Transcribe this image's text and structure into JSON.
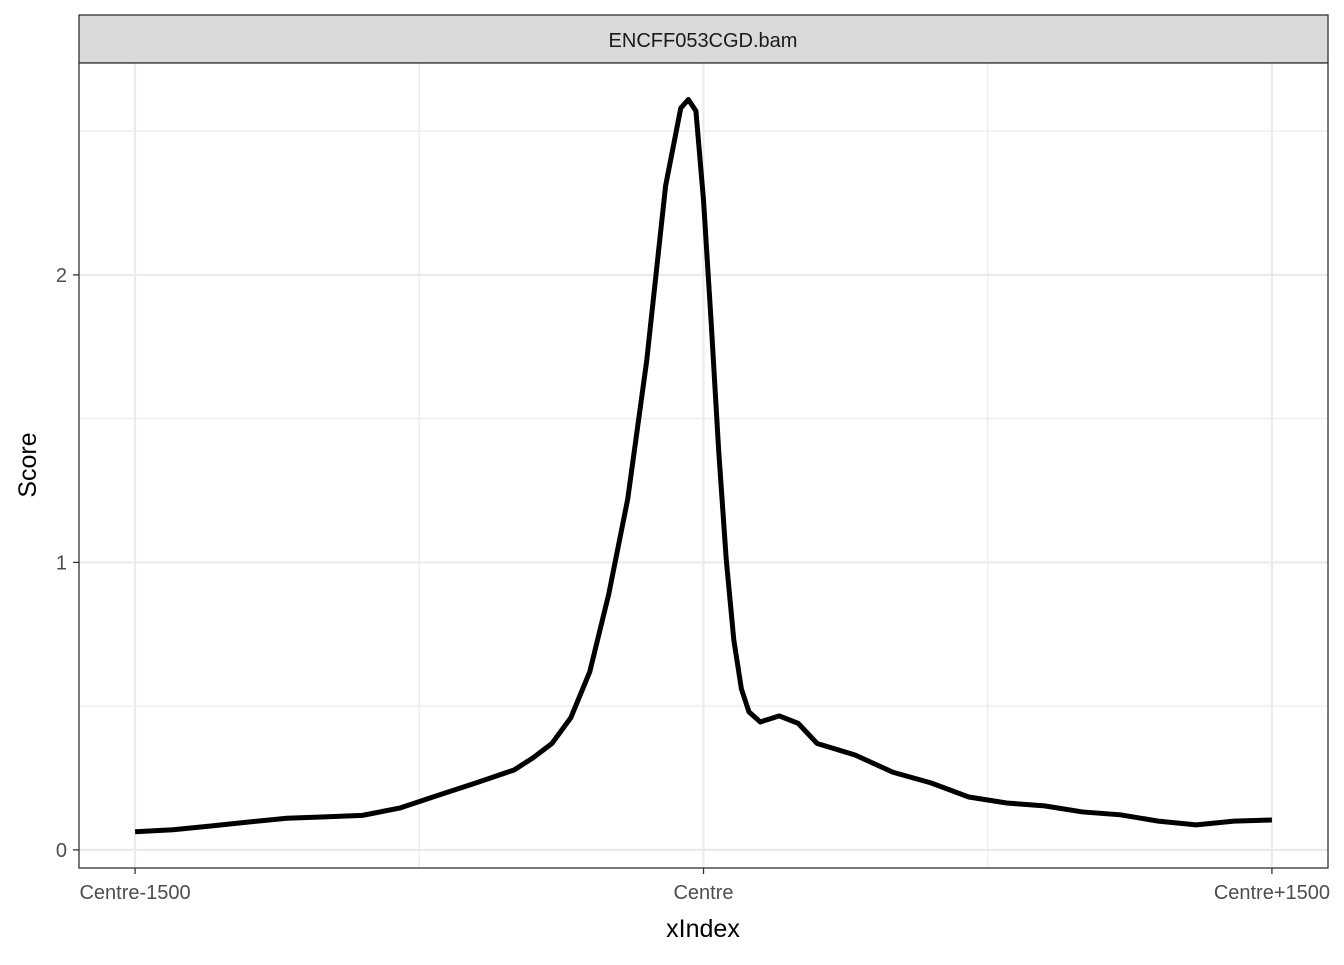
{
  "chart_data": {
    "type": "line",
    "strip_title": "ENCFF053CGD.bam",
    "xlabel": "xIndex",
    "ylabel": "Score",
    "xlim": [
      -1648,
      1648
    ],
    "ylim": [
      -0.063,
      2.737
    ],
    "xticks": [
      {
        "value": -1500,
        "label": "Centre-1500"
      },
      {
        "value": 0,
        "label": "Centre"
      },
      {
        "value": 1500,
        "label": "Centre+1500"
      }
    ],
    "yticks": [
      0,
      1,
      2
    ],
    "x_minor_grid": [
      -750,
      750
    ],
    "y_minor_grid": [
      0.5,
      1.5,
      2.5
    ],
    "grid": true,
    "series": [
      {
        "name": "ENCFF053CGD.bam",
        "color": "#000000",
        "x": [
          -1500,
          -1400,
          -1300,
          -1200,
          -1100,
          -1000,
          -900,
          -800,
          -700,
          -600,
          -500,
          -450,
          -400,
          -350,
          -300,
          -250,
          -200,
          -150,
          -100,
          -60,
          -40,
          -20,
          0,
          20,
          40,
          60,
          80,
          100,
          120,
          150,
          200,
          250,
          300,
          400,
          500,
          600,
          700,
          800,
          900,
          1000,
          1100,
          1200,
          1300,
          1400,
          1500
        ],
        "values": [
          0.063,
          0.07,
          0.083,
          0.097,
          0.11,
          0.115,
          0.12,
          0.146,
          0.19,
          0.233,
          0.278,
          0.32,
          0.37,
          0.46,
          0.62,
          0.89,
          1.22,
          1.7,
          2.31,
          2.58,
          2.61,
          2.57,
          2.26,
          1.84,
          1.39,
          1.01,
          0.73,
          0.56,
          0.48,
          0.445,
          0.466,
          0.44,
          0.37,
          0.33,
          0.27,
          0.233,
          0.184,
          0.163,
          0.153,
          0.132,
          0.122,
          0.1,
          0.087,
          0.1,
          0.104
        ]
      }
    ]
  }
}
